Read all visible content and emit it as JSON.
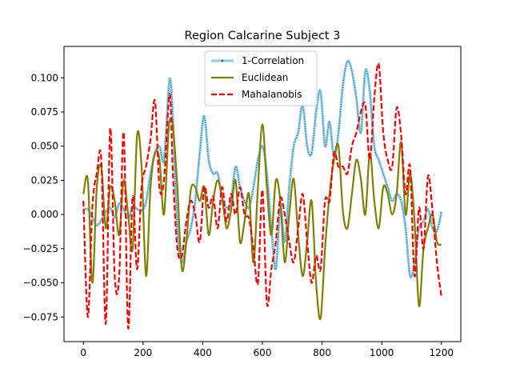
{
  "chart_data": {
    "type": "line",
    "title": "Region Calcarine Subject 3",
    "xlabel": "",
    "ylabel": "",
    "xlim": [
      -65,
      1265
    ],
    "ylim": [
      -0.093,
      0.123
    ],
    "xticks": [
      0,
      200,
      400,
      600,
      800,
      1000,
      1200
    ],
    "yticks": [
      -0.075,
      -0.05,
      -0.025,
      0.0,
      0.025,
      0.05,
      0.075,
      0.1
    ],
    "ytick_labels": [
      "−0.075",
      "−0.050",
      "−0.025",
      "0.000",
      "0.025",
      "0.050",
      "0.075",
      "0.100"
    ],
    "grid": false,
    "legend_position": "upper center",
    "series": [
      {
        "name": "1-Correlation",
        "color": "#87ceeb",
        "style": "solid-with-dots",
        "x": [
          0,
          15,
          30,
          45,
          60,
          75,
          90,
          105,
          120,
          135,
          150,
          165,
          180,
          195,
          210,
          225,
          240,
          255,
          270,
          285,
          292,
          300,
          315,
          330,
          345,
          360,
          375,
          390,
          405,
          420,
          435,
          450,
          465,
          480,
          495,
          510,
          525,
          540,
          555,
          570,
          585,
          600,
          615,
          630,
          645,
          660,
          675,
          690,
          705,
          720,
          735,
          750,
          765,
          780,
          795,
          810,
          825,
          840,
          855,
          870,
          885,
          900,
          915,
          930,
          945,
          960,
          975,
          990,
          1005,
          1020,
          1035,
          1050,
          1065,
          1080,
          1095,
          1110,
          1125,
          1140,
          1155,
          1170,
          1185,
          1200
        ],
        "y": [
          0.003,
          0.004,
          -0.002,
          -0.008,
          -0.004,
          0.002,
          0.005,
          -0.002,
          0.008,
          0.004,
          -0.003,
          0.006,
          0.004,
          0.003,
          0.009,
          0.03,
          0.045,
          0.05,
          0.04,
          0.09,
          0.098,
          0.07,
          -0.01,
          -0.035,
          -0.02,
          -0.01,
          0.01,
          0.045,
          0.072,
          0.04,
          0.03,
          0.03,
          0.012,
          0.005,
          0.01,
          0.035,
          0.02,
          0.01,
          0.005,
          0.02,
          0.04,
          0.05,
          0.03,
          -0.01,
          -0.04,
          0.005,
          -0.02,
          0.02,
          0.05,
          0.06,
          0.08,
          0.05,
          0.045,
          0.075,
          0.09,
          0.05,
          0.068,
          0.042,
          0.06,
          0.095,
          0.112,
          0.105,
          0.085,
          0.06,
          0.105,
          0.09,
          0.05,
          0.04,
          0.03,
          0.02,
          0.01,
          0.015,
          0.01,
          -0.01,
          -0.045,
          -0.035,
          -0.01,
          -0.005,
          0.004,
          -0.01,
          -0.012,
          0.002
        ]
      },
      {
        "name": "Euclidean",
        "color": "#808000",
        "style": "solid",
        "x": [
          0,
          15,
          30,
          45,
          60,
          75,
          90,
          105,
          120,
          135,
          150,
          165,
          180,
          195,
          210,
          225,
          240,
          255,
          270,
          285,
          292,
          300,
          315,
          330,
          345,
          360,
          375,
          390,
          405,
          420,
          435,
          450,
          465,
          480,
          495,
          510,
          525,
          540,
          555,
          570,
          585,
          600,
          615,
          630,
          645,
          660,
          675,
          690,
          705,
          720,
          735,
          750,
          765,
          780,
          795,
          810,
          825,
          840,
          855,
          870,
          885,
          900,
          915,
          930,
          945,
          960,
          975,
          990,
          1005,
          1020,
          1035,
          1050,
          1065,
          1080,
          1095,
          1110,
          1125,
          1140,
          1155,
          1170,
          1185,
          1200
        ],
        "y": [
          0.015,
          0.025,
          -0.05,
          0.02,
          0.035,
          -0.01,
          0.02,
          0.01,
          -0.015,
          0.025,
          0.0,
          -0.025,
          0.058,
          0.035,
          -0.045,
          0.02,
          0.045,
          0.04,
          0.0,
          0.06,
          0.07,
          0.065,
          0.02,
          -0.04,
          -0.02,
          0.018,
          0.02,
          0.01,
          0.02,
          -0.015,
          0.01,
          0.025,
          0.012,
          -0.01,
          0.003,
          0.025,
          -0.02,
          -0.005,
          0.015,
          -0.035,
          0.02,
          0.066,
          0.02,
          -0.015,
          0.025,
          0.01,
          -0.035,
          0.0,
          0.026,
          -0.015,
          -0.045,
          -0.02,
          0.01,
          -0.05,
          -0.076,
          -0.025,
          0.015,
          0.04,
          0.05,
          0.002,
          -0.01,
          0.015,
          0.04,
          0.026,
          0.0,
          0.045,
          0.01,
          -0.01,
          0.02,
          0.015,
          0.0,
          0.015,
          0.053,
          0.0,
          0.03,
          -0.005,
          -0.067,
          -0.025,
          -0.01,
          0.0,
          -0.02,
          -0.022
        ]
      },
      {
        "name": "Mahalanobis",
        "color": "#ff0000",
        "style": "dashed",
        "x": [
          0,
          15,
          30,
          45,
          60,
          75,
          90,
          105,
          120,
          135,
          150,
          165,
          180,
          195,
          210,
          225,
          240,
          255,
          270,
          285,
          292,
          300,
          315,
          330,
          345,
          360,
          375,
          390,
          405,
          420,
          435,
          450,
          465,
          480,
          495,
          510,
          525,
          540,
          555,
          570,
          585,
          600,
          615,
          630,
          645,
          660,
          675,
          690,
          705,
          720,
          735,
          750,
          765,
          780,
          795,
          810,
          825,
          840,
          855,
          870,
          885,
          900,
          915,
          930,
          945,
          960,
          975,
          990,
          1005,
          1020,
          1035,
          1050,
          1065,
          1080,
          1095,
          1110,
          1125,
          1140,
          1155,
          1170,
          1185,
          1200
        ],
        "y": [
          0.01,
          -0.075,
          0.005,
          0.03,
          0.04,
          -0.08,
          0.063,
          -0.045,
          -0.045,
          0.06,
          -0.083,
          0.013,
          -0.04,
          0.02,
          0.035,
          0.055,
          0.083,
          0.02,
          0.025,
          0.08,
          0.083,
          0.03,
          -0.025,
          -0.03,
          -0.005,
          0.01,
          0.0,
          -0.02,
          0.02,
          0.005,
          0.013,
          -0.01,
          0.02,
          -0.005,
          0.015,
          0.0,
          0.02,
          0.0,
          -0.003,
          -0.025,
          -0.05,
          0.018,
          -0.065,
          -0.04,
          -0.02,
          0.012,
          0.0,
          -0.02,
          -0.035,
          -0.01,
          0.015,
          -0.02,
          -0.05,
          -0.03,
          -0.04,
          0.01,
          0.01,
          0.045,
          0.035,
          0.035,
          0.03,
          0.05,
          0.06,
          0.075,
          0.08,
          0.04,
          0.085,
          0.11,
          0.06,
          0.04,
          0.035,
          0.078,
          0.058,
          0.015,
          0.035,
          -0.045,
          0.005,
          -0.025,
          0.028,
          0.003,
          -0.035,
          -0.06
        ]
      }
    ]
  }
}
